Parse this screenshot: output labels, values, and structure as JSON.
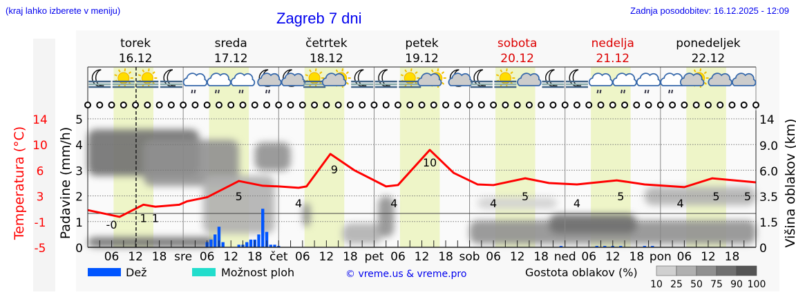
{
  "header": {
    "hint": "(kraj lahko izberete v meniju)",
    "title": "Zagreb 7 dni",
    "updated": "Zadnja posodobitev: 16.12.2025 - 12:09"
  },
  "days": [
    {
      "name": "torek",
      "date": "16.12",
      "weekend": false,
      "axis_label": ""
    },
    {
      "name": "sreda",
      "date": "17.12",
      "weekend": false,
      "axis_label": "sre"
    },
    {
      "name": "četrtek",
      "date": "18.12",
      "weekend": false,
      "axis_label": "čet"
    },
    {
      "name": "petek",
      "date": "19.12",
      "weekend": false,
      "axis_label": "pet"
    },
    {
      "name": "sobota",
      "date": "20.12",
      "weekend": true,
      "axis_label": "sob"
    },
    {
      "name": "nedelja",
      "date": "21.12",
      "weekend": true,
      "axis_label": "ned"
    },
    {
      "name": "ponedeljek",
      "date": "22.12",
      "weekend": false,
      "axis_label": "pon"
    }
  ],
  "hour_labels": [
    "06",
    "12",
    "18"
  ],
  "current_time": "16.12 12:09",
  "weather_icons": [
    [
      "moon-fog",
      "sun-fog",
      "sun-fog",
      "moon-fog"
    ],
    [
      "cloud-drizzle",
      "cloud-drizzle",
      "cloud-drizzle",
      "moon-cloud-drizzle"
    ],
    [
      "moon-cloud",
      "sun-fog",
      "sun-cloud",
      "moon-fog"
    ],
    [
      "moon-fog",
      "sun-fog",
      "sun-cloud",
      "moon-cloud"
    ],
    [
      "moon-fog",
      "sun-fog",
      "cloud",
      "moon-fog"
    ],
    [
      "moon-fog",
      "cloud-drizzle",
      "cloud-drizzle",
      "cloud-drizzle"
    ],
    [
      "cloud-drizzle",
      "sun-cloud",
      "cloud",
      "cloud"
    ]
  ],
  "colors": {
    "temperature": "#ff0000",
    "rain": "#0055ff",
    "showers": "#22ddcc",
    "daylight": "#eef5c8",
    "weekend": "#dd0000",
    "link": "#0000ee"
  },
  "chart_data": {
    "type": "line",
    "axes": {
      "temperature": {
        "label": "Temperatura (°C)",
        "ticks": [
          "14",
          "10",
          "6",
          "3",
          "-1",
          "-5"
        ],
        "range": [
          -5,
          14
        ]
      },
      "precipitation": {
        "label": "Padavine (mm/h)",
        "ticks": [
          "5",
          "4",
          "3",
          "2",
          "1",
          "0"
        ],
        "range": [
          0,
          5
        ]
      },
      "cloud_height": {
        "label": "Višina oblakov (km)",
        "ticks": [
          "14",
          "9.0",
          "6.0",
          "3.5",
          "1.5",
          "0"
        ]
      }
    },
    "grid": true,
    "freezing_line": 0,
    "temperature": [
      [
        "16.12 00",
        0.5
      ],
      [
        "16.12 08",
        -0.5
      ],
      [
        "16.12 14",
        1.3
      ],
      [
        "16.12 17",
        1.0
      ],
      [
        "16.12 23",
        1.3
      ],
      [
        "17.12 01",
        1.8
      ],
      [
        "17.12 06",
        2.4
      ],
      [
        "17.12 14",
        4.8
      ],
      [
        "17.12 20",
        4.1
      ],
      [
        "18.12 00",
        4.0
      ],
      [
        "18.12 05",
        3.8
      ],
      [
        "18.12 07",
        4.0
      ],
      [
        "18.12 13",
        8.8
      ],
      [
        "18.12 19",
        6.4
      ],
      [
        "19.12 03",
        4.0
      ],
      [
        "19.12 06",
        4.2
      ],
      [
        "19.12 14",
        9.4
      ],
      [
        "19.12 20",
        6.0
      ],
      [
        "20.12 02",
        4.3
      ],
      [
        "20.12 06",
        4.2
      ],
      [
        "20.12 14",
        5.2
      ],
      [
        "20.12 20",
        4.5
      ],
      [
        "21.12 03",
        4.3
      ],
      [
        "21.12 13",
        4.9
      ],
      [
        "21.12 20",
        4.3
      ],
      [
        "22.12 06",
        3.9
      ],
      [
        "22.12 13",
        5.2
      ],
      [
        "23.12 00",
        4.6
      ]
    ],
    "temperature_labels": [
      [
        "16.12 06",
        "-0"
      ],
      [
        "16.12 14",
        "1"
      ],
      [
        "16.12 17",
        "1"
      ],
      [
        "17.12 14",
        "5"
      ],
      [
        "18.12 05",
        "4"
      ],
      [
        "18.12 14",
        "9"
      ],
      [
        "19.12 05",
        "4"
      ],
      [
        "19.12 14",
        "10"
      ],
      [
        "20.12 06",
        "4"
      ],
      [
        "20.12 14",
        "5"
      ],
      [
        "21.12 03",
        "4"
      ],
      [
        "21.12 14",
        "5"
      ],
      [
        "22.12 05",
        "4"
      ],
      [
        "22.12 14",
        "5"
      ],
      [
        "22.12 24",
        "5"
      ]
    ],
    "rain": [
      [
        "17.12 06",
        0.2
      ],
      [
        "17.12 07",
        0.3
      ],
      [
        "17.12 08",
        0.5
      ],
      [
        "17.12 09",
        0.8
      ],
      [
        "17.12 10",
        0.2
      ],
      [
        "17.12 14",
        0.1
      ],
      [
        "17.12 15",
        0.1
      ],
      [
        "17.12 16",
        0.2
      ],
      [
        "17.12 17",
        0.3
      ],
      [
        "17.12 18",
        0.3
      ],
      [
        "17.12 19",
        0.5
      ],
      [
        "17.12 20",
        1.5
      ],
      [
        "17.12 21",
        0.6
      ],
      [
        "17.12 22",
        0.1
      ],
      [
        "17.12 23",
        0.1
      ],
      [
        "18.12 00",
        0.05
      ],
      [
        "20.12 23",
        0.05
      ],
      [
        "21.12 08",
        0.03
      ],
      [
        "21.12 10",
        0.05
      ],
      [
        "21.12 12",
        0.05
      ],
      [
        "21.12 14",
        0.04
      ],
      [
        "21.12 20",
        0.04
      ],
      [
        "21.12 22",
        0.05
      ]
    ],
    "cloud_density": [
      {
        "from": "16.12 00",
        "to": "17.12 04",
        "base_km": 5.5,
        "top_km": 12,
        "density": 90
      },
      {
        "from": "16.12 14",
        "to": "17.12 14",
        "base_km": 4.5,
        "top_km": 10,
        "density": 75
      },
      {
        "from": "17.12 05",
        "to": "17.12 23",
        "base_km": 0.8,
        "top_km": 5.5,
        "density": 50
      },
      {
        "from": "17.12 18",
        "to": "18.12 03",
        "base_km": 6,
        "top_km": 9.5,
        "density": 75
      },
      {
        "from": "16.12 00",
        "to": "17.12 08",
        "base_km": 0,
        "top_km": 0.6,
        "density": 90
      },
      {
        "from": "18.12 06",
        "to": "18.12 08",
        "base_km": 1.2,
        "top_km": 3,
        "density": 75
      },
      {
        "from": "18.12 16",
        "to": "19.12 02",
        "base_km": 0.2,
        "top_km": 1.4,
        "density": 50
      },
      {
        "from": "19.12 01",
        "to": "19.12 05",
        "base_km": 0.6,
        "top_km": 3.5,
        "density": 75
      },
      {
        "from": "20.12 00",
        "to": "23.12 00",
        "base_km": 0.2,
        "top_km": 1.6,
        "density": 75
      },
      {
        "from": "20.12 20",
        "to": "21.12 18",
        "base_km": 0.8,
        "top_km": 2.1,
        "density": 90
      },
      {
        "from": "20.12 02",
        "to": "20.12 22",
        "base_km": 2.5,
        "top_km": 3.4,
        "density": 25
      },
      {
        "from": "21.12 20",
        "to": "23.12 00",
        "base_km": 2.8,
        "top_km": 4.4,
        "density": 50
      }
    ]
  },
  "legend": {
    "rain": "Dež",
    "showers": "Možnost ploh",
    "copyright": "© vreme.us & vreme.pro",
    "cloud_density": "Gostota oblakov (%)",
    "density_steps": [
      "10",
      "25",
      "50",
      "75",
      "90",
      "100"
    ],
    "density_colors": [
      "#d0d0d0",
      "#b0b0b0",
      "#909090",
      "#707070",
      "#555555"
    ]
  }
}
